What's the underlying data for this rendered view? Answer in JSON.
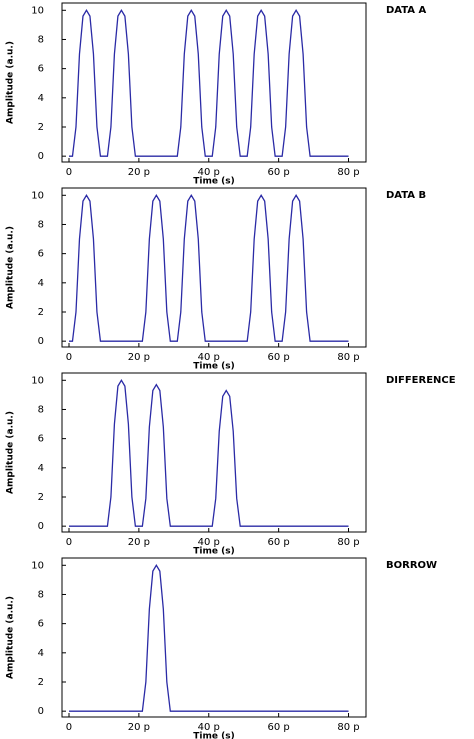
{
  "chart_data": [
    {
      "type": "line",
      "title": "DATA A",
      "xlabel": "Time (s)",
      "ylabel": "Amplitude (a.u.)",
      "x": [
        0,
        1e-12,
        2e-12,
        3e-12,
        4e-12,
        5e-12,
        6e-12,
        7e-12,
        8e-12,
        9e-12,
        1e-11,
        1.1e-11,
        1.2e-11,
        1.3e-11,
        1.4e-11,
        1.5e-11,
        1.6e-11,
        1.7e-11,
        1.8e-11,
        1.9e-11,
        2e-11,
        2.1e-11,
        2.2e-11,
        2.3e-11,
        2.4e-11,
        2.5e-11,
        2.6e-11,
        2.7e-11,
        2.8e-11,
        2.9e-11,
        3e-11,
        3.1e-11,
        3.2e-11,
        3.3e-11,
        3.4e-11,
        3.5e-11,
        3.6e-11,
        3.7e-11,
        3.8e-11,
        3.9e-11,
        4e-11,
        4.1e-11,
        4.2e-11,
        4.3e-11,
        4.4e-11,
        4.5e-11,
        4.6e-11,
        4.7e-11,
        4.8e-11,
        4.9e-11,
        5e-11,
        5.1e-11,
        5.2e-11,
        5.3e-11,
        5.4e-11,
        5.5e-11,
        5.6e-11,
        5.7e-11,
        5.8e-11,
        5.9e-11,
        6e-11,
        6.1e-11,
        6.2e-11,
        6.3e-11,
        6.4e-11,
        6.5e-11,
        6.6e-11,
        6.7e-11,
        6.8e-11,
        6.9e-11,
        7e-11,
        7.1e-11,
        7.2e-11,
        7.3e-11,
        7.4e-11,
        7.5e-11,
        7.6e-11,
        7.7e-11,
        7.8e-11,
        7.9e-11,
        8e-11
      ],
      "series": [
        {
          "color": "#2b2ba6",
          "values": [
            0,
            0,
            2,
            7,
            9.6,
            10,
            9.6,
            7,
            2,
            0,
            0,
            0,
            2,
            7,
            9.6,
            10,
            9.6,
            7,
            2,
            0,
            0,
            0,
            0,
            0,
            0,
            0,
            0,
            0,
            0,
            0,
            0,
            0,
            2,
            7,
            9.6,
            10,
            9.6,
            7,
            2,
            0,
            0,
            0,
            2,
            7,
            9.6,
            10,
            9.6,
            7,
            2,
            0,
            0,
            0,
            2,
            7,
            9.6,
            10,
            9.6,
            7,
            2,
            0,
            0,
            0,
            2,
            7,
            9.6,
            10,
            9.6,
            7,
            2,
            0,
            0,
            0,
            0,
            0,
            0,
            0,
            0,
            0,
            0,
            0,
            0
          ]
        }
      ],
      "xlim": [
        -2e-12,
        8.5e-11
      ],
      "ylim": [
        -0.4,
        10.5
      ],
      "xticks": [
        0,
        {
          "value": 2e-11,
          "label": "20 p"
        },
        {
          "value": 4e-11,
          "label": "40 p"
        },
        {
          "value": 6e-11,
          "label": "60 p"
        },
        {
          "value": 8e-11,
          "label": "80 p"
        }
      ],
      "yticks": [
        0,
        2,
        4,
        6,
        8,
        10
      ]
    },
    {
      "type": "line",
      "title": "DATA B",
      "xlabel": "Time (s)",
      "ylabel": "Amplitude (a.u.)",
      "x": [
        0,
        1e-12,
        2e-12,
        3e-12,
        4e-12,
        5e-12,
        6e-12,
        7e-12,
        8e-12,
        9e-12,
        1e-11,
        1.1e-11,
        1.2e-11,
        1.3e-11,
        1.4e-11,
        1.5e-11,
        1.6e-11,
        1.7e-11,
        1.8e-11,
        1.9e-11,
        2e-11,
        2.1e-11,
        2.2e-11,
        2.3e-11,
        2.4e-11,
        2.5e-11,
        2.6e-11,
        2.7e-11,
        2.8e-11,
        2.9e-11,
        3e-11,
        3.1e-11,
        3.2e-11,
        3.3e-11,
        3.4e-11,
        3.5e-11,
        3.6e-11,
        3.7e-11,
        3.8e-11,
        3.9e-11,
        4e-11,
        4.1e-11,
        4.2e-11,
        4.3e-11,
        4.4e-11,
        4.5e-11,
        4.6e-11,
        4.7e-11,
        4.8e-11,
        4.9e-11,
        5e-11,
        5.1e-11,
        5.2e-11,
        5.3e-11,
        5.4e-11,
        5.5e-11,
        5.6e-11,
        5.7e-11,
        5.8e-11,
        5.9e-11,
        6e-11,
        6.1e-11,
        6.2e-11,
        6.3e-11,
        6.4e-11,
        6.5e-11,
        6.6e-11,
        6.7e-11,
        6.8e-11,
        6.9e-11,
        7e-11,
        7.1e-11,
        7.2e-11,
        7.3e-11,
        7.4e-11,
        7.5e-11,
        7.6e-11,
        7.7e-11,
        7.8e-11,
        7.9e-11,
        8e-11
      ],
      "series": [
        {
          "color": "#2b2ba6",
          "values": [
            0,
            0,
            2,
            7,
            9.6,
            10,
            9.6,
            7,
            2,
            0,
            0,
            0,
            0,
            0,
            0,
            0,
            0,
            0,
            0,
            0,
            0,
            0,
            2,
            7,
            9.6,
            10,
            9.6,
            7,
            2,
            0,
            0,
            0,
            2,
            7,
            9.6,
            10,
            9.6,
            7,
            2,
            0,
            0,
            0,
            0,
            0,
            0,
            0,
            0,
            0,
            0,
            0,
            0,
            0,
            2,
            7,
            9.6,
            10,
            9.6,
            7,
            2,
            0,
            0,
            0,
            2,
            7,
            9.6,
            10,
            9.6,
            7,
            2,
            0,
            0,
            0,
            0,
            0,
            0,
            0,
            0,
            0,
            0,
            0,
            0
          ]
        }
      ],
      "xlim": [
        -2e-12,
        8.5e-11
      ],
      "ylim": [
        -0.4,
        10.5
      ],
      "xticks": [
        0,
        {
          "value": 2e-11,
          "label": "20 p"
        },
        {
          "value": 4e-11,
          "label": "40 p"
        },
        {
          "value": 6e-11,
          "label": "60 p"
        },
        {
          "value": 8e-11,
          "label": "80 p"
        }
      ],
      "yticks": [
        0,
        2,
        4,
        6,
        8,
        10
      ]
    },
    {
      "type": "line",
      "title": "DIFFERENCE",
      "xlabel": "Time (s)",
      "ylabel": "Amplitude (a.u.)",
      "x": [
        0,
        1e-12,
        2e-12,
        3e-12,
        4e-12,
        5e-12,
        6e-12,
        7e-12,
        8e-12,
        9e-12,
        1e-11,
        1.1e-11,
        1.2e-11,
        1.3e-11,
        1.4e-11,
        1.5e-11,
        1.6e-11,
        1.7e-11,
        1.8e-11,
        1.9e-11,
        2e-11,
        2.1e-11,
        2.2e-11,
        2.3e-11,
        2.4e-11,
        2.5e-11,
        2.6e-11,
        2.7e-11,
        2.8e-11,
        2.9e-11,
        3e-11,
        3.1e-11,
        3.2e-11,
        3.3e-11,
        3.4e-11,
        3.5e-11,
        3.6e-11,
        3.7e-11,
        3.8e-11,
        3.9e-11,
        4e-11,
        4.1e-11,
        4.2e-11,
        4.3e-11,
        4.4e-11,
        4.5e-11,
        4.6e-11,
        4.7e-11,
        4.8e-11,
        4.9e-11,
        5e-11,
        5.1e-11,
        5.2e-11,
        5.3e-11,
        5.4e-11,
        5.5e-11,
        5.6e-11,
        5.7e-11,
        5.8e-11,
        5.9e-11,
        6e-11,
        6.1e-11,
        6.2e-11,
        6.3e-11,
        6.4e-11,
        6.5e-11,
        6.6e-11,
        6.7e-11,
        6.8e-11,
        6.9e-11,
        7e-11,
        7.1e-11,
        7.2e-11,
        7.3e-11,
        7.4e-11,
        7.5e-11,
        7.6e-11,
        7.7e-11,
        7.8e-11,
        7.9e-11,
        8e-11
      ],
      "series": [
        {
          "color": "#2b2ba6",
          "values": [
            0,
            0,
            0,
            0,
            0,
            0,
            0,
            0,
            0,
            0,
            0,
            0,
            2,
            7,
            9.6,
            10,
            9.6,
            7,
            2,
            0,
            0,
            0,
            1.9,
            6.8,
            9.3,
            9.7,
            9.3,
            6.8,
            1.9,
            0,
            0,
            0,
            0,
            0,
            0,
            0,
            0,
            0,
            0,
            0,
            0,
            0,
            1.9,
            6.5,
            8.9,
            9.3,
            8.9,
            6.5,
            1.9,
            0,
            0,
            0,
            0,
            0,
            0,
            0,
            0,
            0,
            0,
            0,
            0,
            0,
            0,
            0,
            0,
            0,
            0,
            0,
            0,
            0,
            0,
            0,
            0,
            0,
            0,
            0,
            0,
            0,
            0,
            0,
            0
          ]
        }
      ],
      "xlim": [
        -2e-12,
        8.5e-11
      ],
      "ylim": [
        -0.4,
        10.5
      ],
      "xticks": [
        0,
        {
          "value": 2e-11,
          "label": "20 p"
        },
        {
          "value": 4e-11,
          "label": "40 p"
        },
        {
          "value": 6e-11,
          "label": "60 p"
        },
        {
          "value": 8e-11,
          "label": "80 p"
        }
      ],
      "yticks": [
        0,
        2,
        4,
        6,
        8,
        10
      ]
    },
    {
      "type": "line",
      "title": "BORROW",
      "xlabel": "Time (s)",
      "ylabel": "Amplitude (a.u.)",
      "x": [
        0,
        1e-12,
        2e-12,
        3e-12,
        4e-12,
        5e-12,
        6e-12,
        7e-12,
        8e-12,
        9e-12,
        1e-11,
        1.1e-11,
        1.2e-11,
        1.3e-11,
        1.4e-11,
        1.5e-11,
        1.6e-11,
        1.7e-11,
        1.8e-11,
        1.9e-11,
        2e-11,
        2.1e-11,
        2.2e-11,
        2.3e-11,
        2.4e-11,
        2.5e-11,
        2.6e-11,
        2.7e-11,
        2.8e-11,
        2.9e-11,
        3e-11,
        3.1e-11,
        3.2e-11,
        3.3e-11,
        3.4e-11,
        3.5e-11,
        3.6e-11,
        3.7e-11,
        3.8e-11,
        3.9e-11,
        4e-11,
        4.1e-11,
        4.2e-11,
        4.3e-11,
        4.4e-11,
        4.5e-11,
        4.6e-11,
        4.7e-11,
        4.8e-11,
        4.9e-11,
        5e-11,
        5.1e-11,
        5.2e-11,
        5.3e-11,
        5.4e-11,
        5.5e-11,
        5.6e-11,
        5.7e-11,
        5.8e-11,
        5.9e-11,
        6e-11,
        6.1e-11,
        6.2e-11,
        6.3e-11,
        6.4e-11,
        6.5e-11,
        6.6e-11,
        6.7e-11,
        6.8e-11,
        6.9e-11,
        7e-11,
        7.1e-11,
        7.2e-11,
        7.3e-11,
        7.4e-11,
        7.5e-11,
        7.6e-11,
        7.7e-11,
        7.8e-11,
        7.9e-11,
        8e-11
      ],
      "series": [
        {
          "color": "#2b2ba6",
          "values": [
            0,
            0,
            0,
            0,
            0,
            0,
            0,
            0,
            0,
            0,
            0,
            0,
            0,
            0,
            0,
            0,
            0,
            0,
            0,
            0,
            0,
            0,
            2,
            7,
            9.6,
            10,
            9.6,
            7,
            2,
            0,
            0,
            0,
            0,
            0,
            0,
            0,
            0,
            0,
            0,
            0,
            0,
            0,
            0,
            0,
            0,
            0,
            0,
            0,
            0,
            0,
            0,
            0,
            0,
            0,
            0,
            0,
            0,
            0,
            0,
            0,
            0,
            0,
            0,
            0,
            0,
            0,
            0,
            0,
            0,
            0,
            0,
            0,
            0,
            0,
            0,
            0,
            0,
            0,
            0,
            0,
            0
          ]
        }
      ],
      "xlim": [
        -2e-12,
        8.5e-11
      ],
      "ylim": [
        -0.4,
        10.5
      ],
      "xticks": [
        0,
        {
          "value": 2e-11,
          "label": "20 p"
        },
        {
          "value": 4e-11,
          "label": "40 p"
        },
        {
          "value": 6e-11,
          "label": "60 p"
        },
        {
          "value": 8e-11,
          "label": "80 p"
        }
      ],
      "yticks": [
        0,
        2,
        4,
        6,
        8,
        10
      ]
    }
  ]
}
